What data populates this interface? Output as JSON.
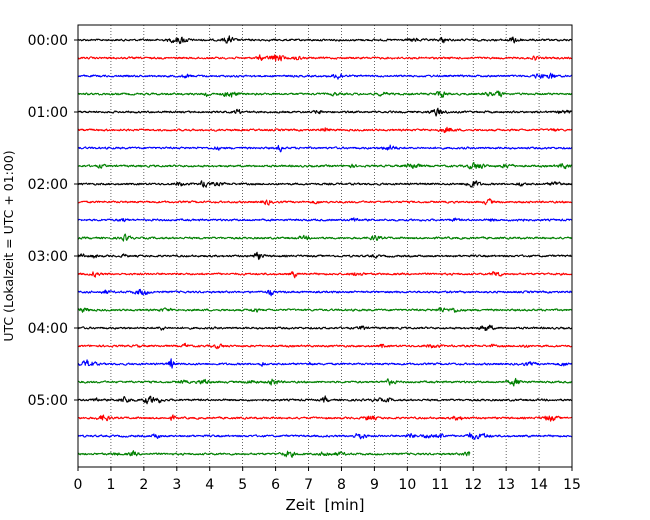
{
  "chart_data": {
    "type": "line",
    "title": "",
    "xlabel": "Zeit  [min]",
    "ylabel": "UTC (Lokalzeit = UTC + 01:00)",
    "xlim": [
      0,
      15
    ],
    "x_ticks": [
      "0",
      "1",
      "2",
      "3",
      "4",
      "5",
      "6",
      "7",
      "8",
      "9",
      "10",
      "11",
      "12",
      "13",
      "14",
      "15"
    ],
    "y_tick_labels": [
      "00:00",
      "01:00",
      "02:00",
      "03:00",
      "04:00",
      "05:00"
    ],
    "grid": "vertical dotted",
    "row_minutes": 15,
    "colors": [
      "#000000",
      "#ff0000",
      "#0000ff",
      "#008000"
    ],
    "series": [
      {
        "row": 0,
        "start": "00:00",
        "color": "#000000",
        "end_min": 15
      },
      {
        "row": 1,
        "start": "00:15",
        "color": "#ff0000",
        "end_min": 15
      },
      {
        "row": 2,
        "start": "00:30",
        "color": "#0000ff",
        "end_min": 15
      },
      {
        "row": 3,
        "start": "00:45",
        "color": "#008000",
        "end_min": 15
      },
      {
        "row": 4,
        "start": "01:00",
        "color": "#000000",
        "end_min": 15
      },
      {
        "row": 5,
        "start": "01:15",
        "color": "#ff0000",
        "end_min": 15
      },
      {
        "row": 6,
        "start": "01:30",
        "color": "#0000ff",
        "end_min": 15
      },
      {
        "row": 7,
        "start": "01:45",
        "color": "#008000",
        "end_min": 15
      },
      {
        "row": 8,
        "start": "02:00",
        "color": "#000000",
        "end_min": 15
      },
      {
        "row": 9,
        "start": "02:15",
        "color": "#ff0000",
        "end_min": 15
      },
      {
        "row": 10,
        "start": "02:30",
        "color": "#0000ff",
        "end_min": 15
      },
      {
        "row": 11,
        "start": "02:45",
        "color": "#008000",
        "end_min": 15
      },
      {
        "row": 12,
        "start": "03:00",
        "color": "#000000",
        "end_min": 15
      },
      {
        "row": 13,
        "start": "03:15",
        "color": "#ff0000",
        "end_min": 15
      },
      {
        "row": 14,
        "start": "03:30",
        "color": "#0000ff",
        "end_min": 15
      },
      {
        "row": 15,
        "start": "03:45",
        "color": "#008000",
        "end_min": 15
      },
      {
        "row": 16,
        "start": "04:00",
        "color": "#000000",
        "end_min": 15
      },
      {
        "row": 17,
        "start": "04:15",
        "color": "#ff0000",
        "end_min": 15
      },
      {
        "row": 18,
        "start": "04:30",
        "color": "#0000ff",
        "end_min": 15
      },
      {
        "row": 19,
        "start": "04:45",
        "color": "#008000",
        "end_min": 15
      },
      {
        "row": 20,
        "start": "05:00",
        "color": "#000000",
        "end_min": 15
      },
      {
        "row": 21,
        "start": "05:15",
        "color": "#ff0000",
        "end_min": 15
      },
      {
        "row": 22,
        "start": "05:30",
        "color": "#0000ff",
        "end_min": 15
      },
      {
        "row": 23,
        "start": "05:45",
        "color": "#008000",
        "end_min": 11.9
      }
    ]
  }
}
